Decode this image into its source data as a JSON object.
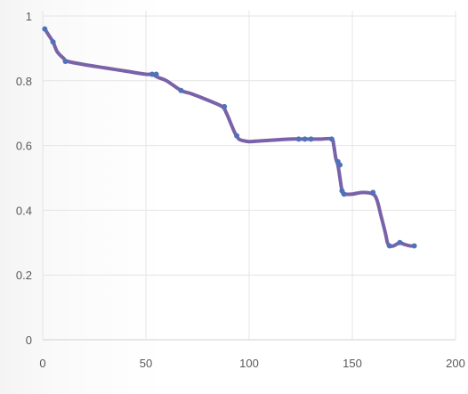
{
  "chart_data": {
    "type": "line",
    "title": "",
    "xlabel": "",
    "ylabel": "",
    "xlim": [
      0,
      200
    ],
    "ylim": [
      0,
      1
    ],
    "x_ticks": [
      0,
      50,
      100,
      150,
      200
    ],
    "y_ticks": [
      0,
      0.2,
      0.4,
      0.6,
      0.8,
      1
    ],
    "x_tick_labels": [
      "0",
      "50",
      "100",
      "150",
      "200"
    ],
    "y_tick_labels": [
      "0",
      "0.2",
      "0.4",
      "0.6",
      "0.8",
      "1"
    ],
    "grid": "vertical and horizontal",
    "legend": "none",
    "series": [
      {
        "color": "#7a62a8",
        "marker_color": "#4f73b8",
        "x": [
          1,
          3,
          5,
          7,
          10,
          12,
          20,
          30,
          40,
          50,
          53,
          56,
          60,
          67,
          72,
          80,
          87,
          89,
          91,
          93,
          94,
          95,
          97,
          100,
          105,
          110,
          115,
          120,
          125,
          128,
          131,
          135,
          140,
          141,
          142,
          143,
          144,
          145,
          146,
          150,
          155,
          160,
          162,
          164,
          166,
          167,
          168,
          170,
          173,
          175,
          178,
          180
        ],
        "y": [
          0.96,
          0.94,
          0.92,
          0.89,
          0.87,
          0.86,
          0.85,
          0.84,
          0.83,
          0.82,
          0.82,
          0.81,
          0.8,
          0.77,
          0.76,
          0.74,
          0.72,
          0.7,
          0.67,
          0.64,
          0.63,
          0.62,
          0.615,
          0.612,
          0.614,
          0.616,
          0.618,
          0.62,
          0.62,
          0.62,
          0.62,
          0.62,
          0.62,
          0.6,
          0.56,
          0.54,
          0.5,
          0.46,
          0.45,
          0.45,
          0.455,
          0.45,
          0.43,
          0.38,
          0.33,
          0.3,
          0.29,
          0.29,
          0.3,
          0.295,
          0.29,
          0.29
        ]
      }
    ],
    "markers": {
      "x": [
        1,
        5,
        11,
        53,
        55,
        67,
        88,
        94,
        124,
        127,
        130,
        140,
        143,
        144,
        145,
        146,
        160,
        168,
        173,
        180
      ],
      "y": [
        0.96,
        0.92,
        0.86,
        0.82,
        0.82,
        0.77,
        0.72,
        0.63,
        0.62,
        0.62,
        0.62,
        0.62,
        0.55,
        0.54,
        0.46,
        0.45,
        0.455,
        0.29,
        0.3,
        0.29
      ]
    }
  }
}
